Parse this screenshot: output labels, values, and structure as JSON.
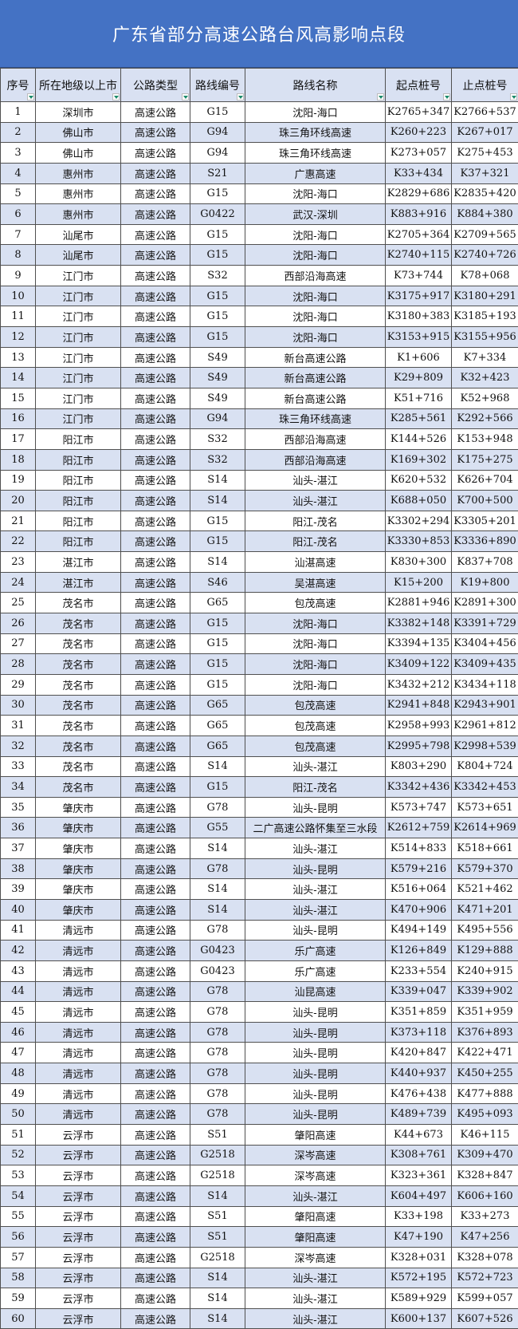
{
  "title": "广东省部分高速公路台风高影响点段",
  "colors": {
    "title_bg": "#4472C4",
    "stripe": "#D9E1F2",
    "filter_arrow": "#1a8a6a"
  },
  "columns": [
    "序号",
    "所在地级以上市",
    "公路类型",
    "路线编号",
    "路线名称",
    "起点桩号",
    "止点桩号"
  ],
  "rows": [
    [
      "1",
      "深圳市",
      "高速公路",
      "G15",
      "沈阳-海口",
      "K2765+347",
      "K2766+537"
    ],
    [
      "2",
      "佛山市",
      "高速公路",
      "G94",
      "珠三角环线高速",
      "K260+223",
      "K267+017"
    ],
    [
      "3",
      "佛山市",
      "高速公路",
      "G94",
      "珠三角环线高速",
      "K273+057",
      "K275+453"
    ],
    [
      "4",
      "惠州市",
      "高速公路",
      "S21",
      "广惠高速",
      "K33+434",
      "K37+321"
    ],
    [
      "5",
      "惠州市",
      "高速公路",
      "G15",
      "沈阳-海口",
      "K2829+686",
      "K2835+420"
    ],
    [
      "6",
      "惠州市",
      "高速公路",
      "G0422",
      "武汉-深圳",
      "K883+916",
      "K884+380"
    ],
    [
      "7",
      "汕尾市",
      "高速公路",
      "G15",
      "沈阳-海口",
      "K2705+364",
      "K2709+565"
    ],
    [
      "8",
      "汕尾市",
      "高速公路",
      "G15",
      "沈阳-海口",
      "K2740+115",
      "K2740+726"
    ],
    [
      "9",
      "江门市",
      "高速公路",
      "S32",
      "西部沿海高速",
      "K73+744",
      "K78+068"
    ],
    [
      "10",
      "江门市",
      "高速公路",
      "G15",
      "沈阳-海口",
      "K3175+917",
      "K3180+291"
    ],
    [
      "11",
      "江门市",
      "高速公路",
      "G15",
      "沈阳-海口",
      "K3180+383",
      "K3185+193"
    ],
    [
      "12",
      "江门市",
      "高速公路",
      "G15",
      "沈阳-海口",
      "K3153+915",
      "K3155+956"
    ],
    [
      "13",
      "江门市",
      "高速公路",
      "S49",
      "新台高速公路",
      "K1+606",
      "K7+334"
    ],
    [
      "14",
      "江门市",
      "高速公路",
      "S49",
      "新台高速公路",
      "K29+809",
      "K32+423"
    ],
    [
      "15",
      "江门市",
      "高速公路",
      "S49",
      "新台高速公路",
      "K51+716",
      "K52+968"
    ],
    [
      "16",
      "江门市",
      "高速公路",
      "G94",
      "珠三角环线高速",
      "K285+561",
      "K292+566"
    ],
    [
      "17",
      "阳江市",
      "高速公路",
      "S32",
      "西部沿海高速",
      "K144+526",
      "K153+948"
    ],
    [
      "18",
      "阳江市",
      "高速公路",
      "S32",
      "西部沿海高速",
      "K169+302",
      "K175+275"
    ],
    [
      "19",
      "阳江市",
      "高速公路",
      "S14",
      "汕头-湛江",
      "K620+532",
      "K626+704"
    ],
    [
      "20",
      "阳江市",
      "高速公路",
      "S14",
      "汕头-湛江",
      "K688+050",
      "K700+500"
    ],
    [
      "21",
      "阳江市",
      "高速公路",
      "G15",
      "阳江-茂名",
      "K3302+294",
      "K3305+201"
    ],
    [
      "22",
      "阳江市",
      "高速公路",
      "G15",
      "阳江-茂名",
      "K3330+853",
      "K3336+890"
    ],
    [
      "23",
      "湛江市",
      "高速公路",
      "S14",
      "汕湛高速",
      "K830+300",
      "K837+708"
    ],
    [
      "24",
      "湛江市",
      "高速公路",
      "S46",
      "吴湛高速",
      "K15+200",
      "K19+800"
    ],
    [
      "25",
      "茂名市",
      "高速公路",
      "G65",
      "包茂高速",
      "K2881+946",
      "K2891+300"
    ],
    [
      "26",
      "茂名市",
      "高速公路",
      "G15",
      "沈阳-海口",
      "K3382+148",
      "K3391+729"
    ],
    [
      "27",
      "茂名市",
      "高速公路",
      "G15",
      "沈阳-海口",
      "K3394+135",
      "K3404+456"
    ],
    [
      "28",
      "茂名市",
      "高速公路",
      "G15",
      "沈阳-海口",
      "K3409+122",
      "K3409+435"
    ],
    [
      "29",
      "茂名市",
      "高速公路",
      "G15",
      "沈阳-海口",
      "K3432+212",
      "K3434+118"
    ],
    [
      "30",
      "茂名市",
      "高速公路",
      "G65",
      "包茂高速",
      "K2941+848",
      "K2943+901"
    ],
    [
      "31",
      "茂名市",
      "高速公路",
      "G65",
      "包茂高速",
      "K2958+993",
      "K2961+812"
    ],
    [
      "32",
      "茂名市",
      "高速公路",
      "G65",
      "包茂高速",
      "K2995+798",
      "K2998+539"
    ],
    [
      "33",
      "茂名市",
      "高速公路",
      "S14",
      "汕头-湛江",
      "K803+290",
      "K804+724"
    ],
    [
      "34",
      "茂名市",
      "高速公路",
      "G15",
      "阳江-茂名",
      "K3342+436",
      "K3342+453"
    ],
    [
      "35",
      "肇庆市",
      "高速公路",
      "G78",
      "汕头-昆明",
      "K573+747",
      "K573+651"
    ],
    [
      "36",
      "肇庆市",
      "高速公路",
      "G55",
      "二广高速公路怀集至三水段",
      "K2612+759",
      "K2614+969"
    ],
    [
      "37",
      "肇庆市",
      "高速公路",
      "S14",
      "汕头-湛江",
      "K514+833",
      "K518+661"
    ],
    [
      "38",
      "肇庆市",
      "高速公路",
      "G78",
      "汕头-昆明",
      "K579+216",
      "K579+370"
    ],
    [
      "39",
      "肇庆市",
      "高速公路",
      "S14",
      "汕头-湛江",
      "K516+064",
      "K521+462"
    ],
    [
      "40",
      "肇庆市",
      "高速公路",
      "S14",
      "汕头-湛江",
      "K470+906",
      "K471+201"
    ],
    [
      "41",
      "清远市",
      "高速公路",
      "G78",
      "汕头-昆明",
      "K494+149",
      "K495+556"
    ],
    [
      "42",
      "清远市",
      "高速公路",
      "G0423",
      "乐广高速",
      "K126+849",
      "K129+888"
    ],
    [
      "43",
      "清远市",
      "高速公路",
      "G0423",
      "乐广高速",
      "K233+554",
      "K240+915"
    ],
    [
      "44",
      "清远市",
      "高速公路",
      "G78",
      "汕昆高速",
      "K339+047",
      "K339+902"
    ],
    [
      "45",
      "清远市",
      "高速公路",
      "G78",
      "汕头-昆明",
      "K351+859",
      "K351+959"
    ],
    [
      "46",
      "清远市",
      "高速公路",
      "G78",
      "汕头-昆明",
      "K373+118",
      "K376+893"
    ],
    [
      "47",
      "清远市",
      "高速公路",
      "G78",
      "汕头-昆明",
      "K420+847",
      "K422+471"
    ],
    [
      "48",
      "清远市",
      "高速公路",
      "G78",
      "汕头-昆明",
      "K440+937",
      "K450+255"
    ],
    [
      "49",
      "清远市",
      "高速公路",
      "G78",
      "汕头-昆明",
      "K476+438",
      "K477+888"
    ],
    [
      "50",
      "清远市",
      "高速公路",
      "G78",
      "汕头-昆明",
      "K489+739",
      "K495+093"
    ],
    [
      "51",
      "云浮市",
      "高速公路",
      "S51",
      "肇阳高速",
      "K44+673",
      "K46+115"
    ],
    [
      "52",
      "云浮市",
      "高速公路",
      "G2518",
      "深岑高速",
      "K308+761",
      "K309+470"
    ],
    [
      "53",
      "云浮市",
      "高速公路",
      "G2518",
      "深岑高速",
      "K323+361",
      "K328+847"
    ],
    [
      "54",
      "云浮市",
      "高速公路",
      "S14",
      "汕头-湛江",
      "K604+497",
      "K606+160"
    ],
    [
      "55",
      "云浮市",
      "高速公路",
      "S51",
      "肇阳高速",
      "K33+198",
      "K33+273"
    ],
    [
      "56",
      "云浮市",
      "高速公路",
      "S51",
      "肇阳高速",
      "K47+190",
      "K47+256"
    ],
    [
      "57",
      "云浮市",
      "高速公路",
      "G2518",
      "深岑高速",
      "K328+031",
      "K328+078"
    ],
    [
      "58",
      "云浮市",
      "高速公路",
      "S14",
      "汕头-湛江",
      "K572+195",
      "K572+723"
    ],
    [
      "59",
      "云浮市",
      "高速公路",
      "S14",
      "汕头-湛江",
      "K589+929",
      "K599+057"
    ],
    [
      "60",
      "云浮市",
      "高速公路",
      "S14",
      "汕头-湛江",
      "K600+137",
      "K607+526"
    ]
  ]
}
